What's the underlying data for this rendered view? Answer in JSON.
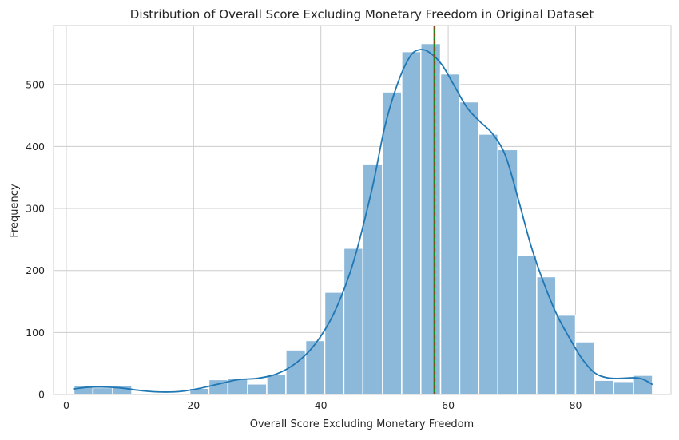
{
  "chart_data": {
    "type": "bar",
    "title": "Distribution of Overall Score Excluding Monetary Freedom in Original Dataset",
    "xlabel": "Overall Score Excluding Monetary Freedom",
    "ylabel": "Frequency",
    "xlim": [
      -2,
      95
    ],
    "ylim": [
      0,
      595
    ],
    "xticks": [
      0,
      20,
      40,
      60,
      80
    ],
    "yticks": [
      0,
      100,
      200,
      300,
      400,
      500
    ],
    "grid": true,
    "bins": [
      {
        "x0": 1.2,
        "x1": 4.2,
        "count": 15
      },
      {
        "x0": 4.2,
        "x1": 7.3,
        "count": 11
      },
      {
        "x0": 7.3,
        "x1": 10.3,
        "count": 15
      },
      {
        "x0": 10.3,
        "x1": 13.3,
        "count": 0
      },
      {
        "x0": 13.3,
        "x1": 16.3,
        "count": 0
      },
      {
        "x0": 16.3,
        "x1": 19.4,
        "count": 2
      },
      {
        "x0": 19.4,
        "x1": 22.4,
        "count": 10
      },
      {
        "x0": 22.4,
        "x1": 25.4,
        "count": 24
      },
      {
        "x0": 25.4,
        "x1": 28.5,
        "count": 26
      },
      {
        "x0": 28.5,
        "x1": 31.5,
        "count": 17
      },
      {
        "x0": 31.5,
        "x1": 34.5,
        "count": 32
      },
      {
        "x0": 34.5,
        "x1": 37.6,
        "count": 72
      },
      {
        "x0": 37.6,
        "x1": 40.6,
        "count": 87
      },
      {
        "x0": 40.6,
        "x1": 43.6,
        "count": 165
      },
      {
        "x0": 43.6,
        "x1": 46.6,
        "count": 236
      },
      {
        "x0": 46.6,
        "x1": 49.7,
        "count": 372
      },
      {
        "x0": 49.7,
        "x1": 52.7,
        "count": 488
      },
      {
        "x0": 52.7,
        "x1": 55.7,
        "count": 553
      },
      {
        "x0": 55.7,
        "x1": 58.8,
        "count": 566
      },
      {
        "x0": 58.8,
        "x1": 61.8,
        "count": 517
      },
      {
        "x0": 61.8,
        "x1": 64.8,
        "count": 472
      },
      {
        "x0": 64.8,
        "x1": 67.8,
        "count": 420
      },
      {
        "x0": 67.8,
        "x1": 70.9,
        "count": 395
      },
      {
        "x0": 70.9,
        "x1": 73.9,
        "count": 225
      },
      {
        "x0": 73.9,
        "x1": 76.9,
        "count": 190
      },
      {
        "x0": 76.9,
        "x1": 80.0,
        "count": 128
      },
      {
        "x0": 80.0,
        "x1": 83.0,
        "count": 85
      },
      {
        "x0": 83.0,
        "x1": 86.0,
        "count": 23
      },
      {
        "x0": 86.0,
        "x1": 89.1,
        "count": 21
      },
      {
        "x0": 89.1,
        "x1": 92.1,
        "count": 31
      }
    ],
    "kde": [
      [
        1.2,
        9
      ],
      [
        4,
        12
      ],
      [
        8,
        11
      ],
      [
        12,
        6
      ],
      [
        15,
        4
      ],
      [
        18,
        5
      ],
      [
        21,
        10
      ],
      [
        24,
        17
      ],
      [
        27,
        24
      ],
      [
        30,
        26
      ],
      [
        33,
        33
      ],
      [
        36,
        50
      ],
      [
        39,
        80
      ],
      [
        42,
        130
      ],
      [
        45,
        210
      ],
      [
        48,
        330
      ],
      [
        50,
        430
      ],
      [
        52,
        500
      ],
      [
        54,
        545
      ],
      [
        55.5,
        556
      ],
      [
        57,
        552
      ],
      [
        59,
        532
      ],
      [
        61,
        497
      ],
      [
        63,
        462
      ],
      [
        65,
        440
      ],
      [
        67,
        420
      ],
      [
        69,
        385
      ],
      [
        71,
        315
      ],
      [
        73,
        240
      ],
      [
        75,
        180
      ],
      [
        77,
        130
      ],
      [
        79,
        92
      ],
      [
        81,
        58
      ],
      [
        83,
        35
      ],
      [
        85,
        27
      ],
      [
        87,
        26
      ],
      [
        89,
        27
      ],
      [
        90.5,
        25
      ],
      [
        92.1,
        16
      ]
    ],
    "mean": 57.9,
    "median": 57.8,
    "colors": {
      "bar": "#8cb8d9",
      "bar_edge": "#ffffff",
      "kde": "#1f77b4",
      "mean_line": "#e31a1c",
      "median_line": "#1a8a1a",
      "grid": "#cccccc",
      "spine": "#cccccc"
    }
  }
}
